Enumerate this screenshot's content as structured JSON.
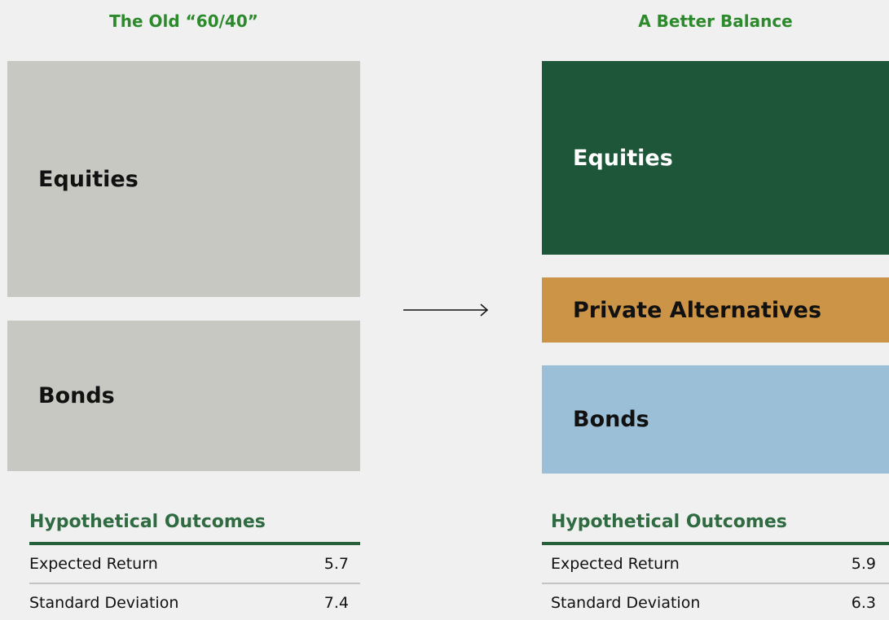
{
  "panels": [
    {
      "title": "The Old “60/40”",
      "blocks": [
        "Equities",
        "Bonds"
      ],
      "table": {
        "header": "Hypothetical Outcomes",
        "rows": [
          [
            "Expected Return",
            "5.7"
          ],
          [
            "Standard Deviation",
            "7.4"
          ]
        ]
      }
    },
    {
      "title": "A Better Balance",
      "blocks": [
        "Equities",
        "Private Alternatives",
        "Bonds"
      ],
      "table": {
        "header": "Hypothetical Outcomes",
        "rows": [
          [
            "Expected Return",
            "5.9"
          ],
          [
            "Standard Deviation",
            "6.3"
          ]
        ]
      }
    }
  ]
}
